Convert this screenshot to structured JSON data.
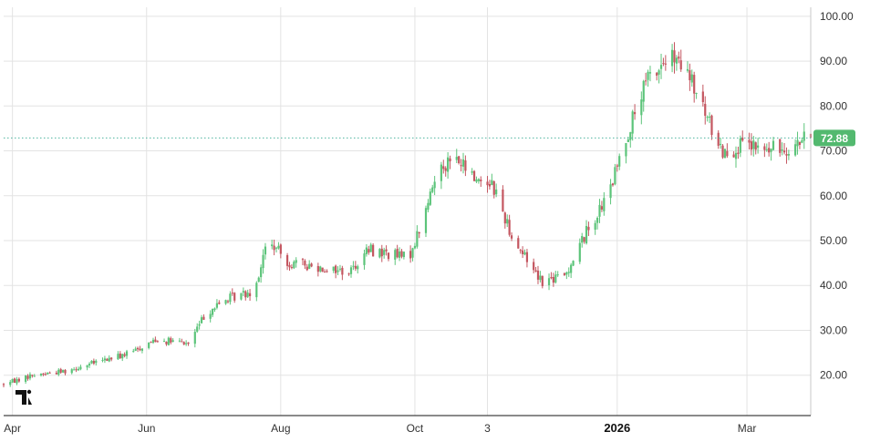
{
  "chart_data": {
    "type": "candlestick",
    "title": "",
    "xlabel": "",
    "ylabel": "",
    "y_range": [
      11,
      102
    ],
    "y_ticks": [
      20,
      30,
      40,
      50,
      60,
      70,
      80,
      90,
      100
    ],
    "y_tick_labels": [
      "20.00",
      "30.00",
      "40.00",
      "50.00",
      "60.00",
      "70.00",
      "80.00",
      "90.00",
      "100.00"
    ],
    "x_range": [
      "2025-03-28",
      "2026-03-30"
    ],
    "x_ticks": [
      {
        "date": "2025-04-01",
        "label": "Apr",
        "bold": false
      },
      {
        "date": "2025-06-01",
        "label": "Jun",
        "bold": false
      },
      {
        "date": "2025-08-01",
        "label": "Aug",
        "bold": false
      },
      {
        "date": "2025-10-01",
        "label": "Oct",
        "bold": false
      },
      {
        "date": "2025-11-03",
        "label": "3",
        "bold": false
      },
      {
        "date": "2026-01-01",
        "label": "2026",
        "bold": true
      },
      {
        "date": "2026-03-01",
        "label": "Mar",
        "bold": false
      }
    ],
    "grid": true,
    "last_price": 72.88,
    "last_price_label": "72.88",
    "up_color": "#5cc47a",
    "down_color": "#c45660",
    "price_label_color": "#53b96f",
    "close_path": [
      [
        "2025-03-28",
        18
      ],
      [
        "2025-04-10",
        20
      ],
      [
        "2025-04-25",
        21
      ],
      [
        "2025-05-10",
        23
      ],
      [
        "2025-05-25",
        25
      ],
      [
        "2025-06-05",
        28
      ],
      [
        "2025-06-20",
        27
      ],
      [
        "2025-06-28",
        34
      ],
      [
        "2025-07-08",
        37
      ],
      [
        "2025-07-20",
        39
      ],
      [
        "2025-07-26",
        50
      ],
      [
        "2025-08-05",
        45
      ],
      [
        "2025-08-20",
        44
      ],
      [
        "2025-09-01",
        43
      ],
      [
        "2025-09-10",
        48
      ],
      [
        "2025-09-20",
        47
      ],
      [
        "2025-09-28",
        46
      ],
      [
        "2025-10-05",
        55
      ],
      [
        "2025-10-12",
        67
      ],
      [
        "2025-10-20",
        68
      ],
      [
        "2025-10-28",
        64
      ],
      [
        "2025-11-05",
        63
      ],
      [
        "2025-11-15",
        50
      ],
      [
        "2025-11-28",
        41
      ],
      [
        "2025-12-08",
        42
      ],
      [
        "2025-12-18",
        52
      ],
      [
        "2025-12-28",
        60
      ],
      [
        "2026-01-05",
        73
      ],
      [
        "2026-01-15",
        86
      ],
      [
        "2026-01-25",
        91
      ],
      [
        "2026-02-03",
        86
      ],
      [
        "2026-02-10",
        78
      ],
      [
        "2026-02-18",
        70
      ],
      [
        "2026-02-28",
        71
      ],
      [
        "2026-03-10",
        70
      ],
      [
        "2026-03-20",
        71
      ],
      [
        "2026-03-30",
        72.9
      ]
    ]
  }
}
